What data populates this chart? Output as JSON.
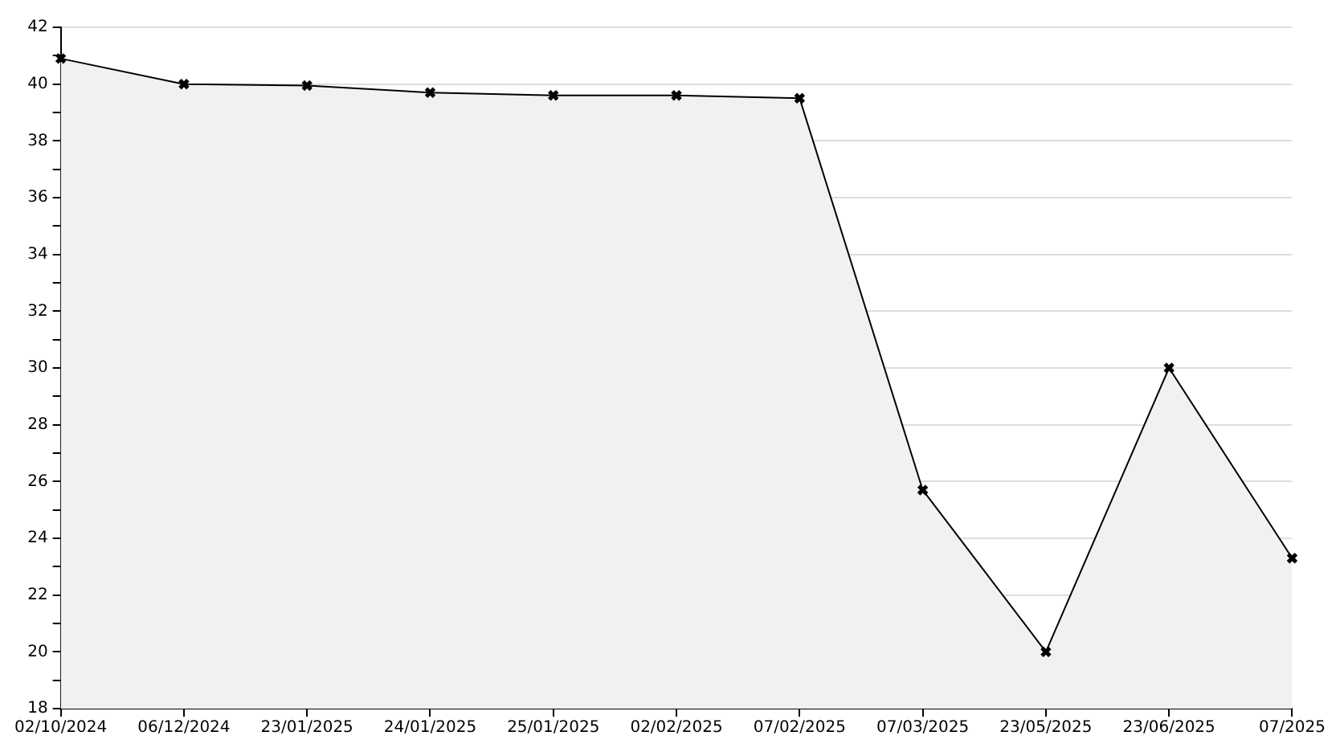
{
  "chart_data": {
    "type": "area",
    "categories": [
      "02/10/2024",
      "06/12/2024",
      "23/01/2025",
      "24/01/2025",
      "25/01/2025",
      "02/02/2025",
      "07/02/2025",
      "07/03/2025",
      "23/05/2025",
      "23/06/2025",
      "07/2025"
    ],
    "series": [
      {
        "color": "#000000",
        "values": [
          40.9,
          40.0,
          39.95,
          39.7,
          39.6,
          39.6,
          39.5,
          25.7,
          20.0,
          30.0,
          23.3
        ]
      }
    ],
    "ylim": [
      18,
      42
    ],
    "yticks": [
      18,
      {
        "value": 19,
        "label": null
      },
      20,
      {
        "value": 21,
        "label": null
      },
      22,
      {
        "value": 23,
        "label": null
      },
      24,
      {
        "value": 25,
        "label": null
      },
      26,
      {
        "value": 27,
        "label": null
      },
      28,
      {
        "value": 29,
        "label": null
      },
      30,
      {
        "value": 31,
        "label": null
      },
      32,
      {
        "value": 33,
        "label": null
      },
      34,
      {
        "value": 35,
        "label": null
      },
      36,
      {
        "value": 37,
        "label": null
      },
      38,
      {
        "value": 39,
        "label": null
      },
      40,
      {
        "value": 41,
        "label": null
      },
      42
    ],
    "grid": "y",
    "marker": "cross",
    "legend": false
  }
}
